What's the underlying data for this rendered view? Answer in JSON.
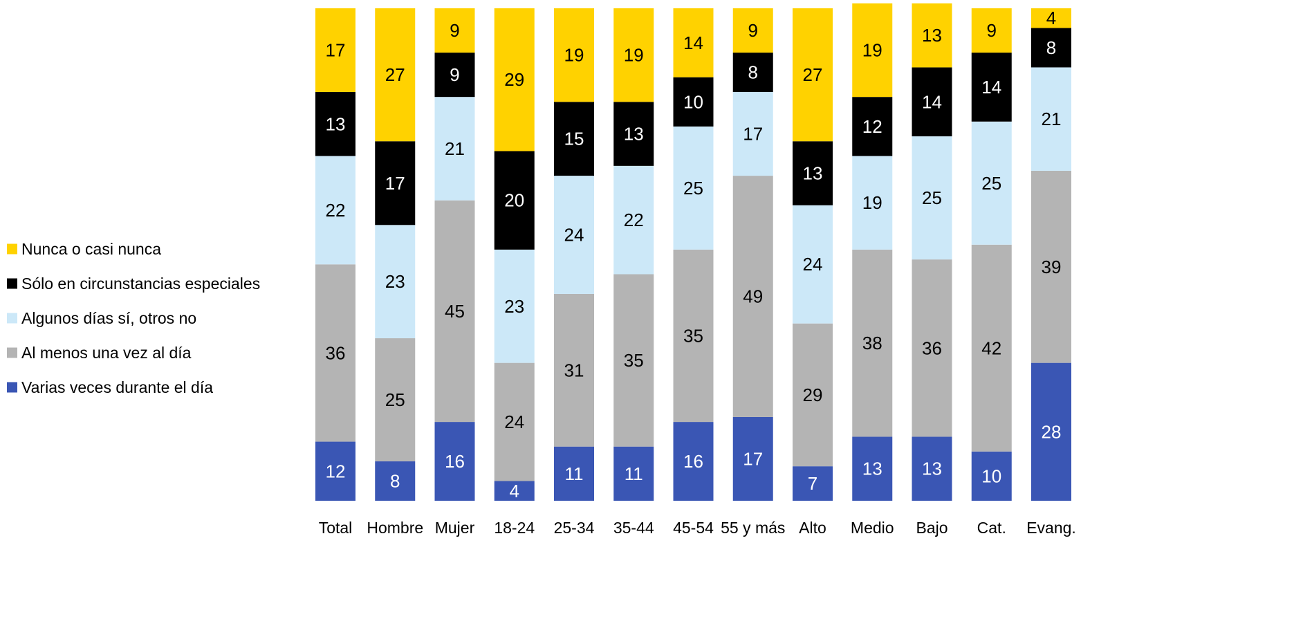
{
  "chart_data": {
    "type": "bar",
    "stacked": true,
    "stack_order_bottom_to_top": [
      "Varias veces durante el día",
      "Al menos una vez al día",
      "Algunos días sí, otros no",
      "Sólo en circunstancias especiales",
      "Nunca o casi nunca"
    ],
    "categories": [
      "Total",
      "Hombre",
      "Mujer",
      "18-24",
      "25-34",
      "35-44",
      "45-54",
      "55 y más",
      "Alto",
      "Medio",
      "Bajo",
      "Cat.",
      "Evang."
    ],
    "series": [
      {
        "name": "Varias veces durante el día",
        "color": "#3a56b4",
        "label_color": "#ffffff",
        "values": [
          12,
          8,
          16,
          4,
          11,
          11,
          16,
          17,
          7,
          13,
          13,
          10,
          28
        ]
      },
      {
        "name": "Al menos una vez al día",
        "color": "#b4b4b4",
        "label_color": "#000000",
        "values": [
          36,
          25,
          45,
          24,
          31,
          35,
          35,
          49,
          29,
          38,
          36,
          42,
          39
        ]
      },
      {
        "name": "Algunos días sí, otros no",
        "color": "#cce8f8",
        "label_color": "#000000",
        "values": [
          22,
          23,
          21,
          23,
          24,
          22,
          25,
          17,
          24,
          19,
          25,
          25,
          21
        ]
      },
      {
        "name": "Sólo en circunstancias especiales",
        "color": "#000000",
        "label_color": "#ffffff",
        "values": [
          13,
          17,
          9,
          20,
          15,
          13,
          10,
          8,
          13,
          12,
          14,
          14,
          8
        ]
      },
      {
        "name": "Nunca o casi nunca",
        "color": "#ffd200",
        "label_color": "#000000",
        "values": [
          17,
          27,
          9,
          29,
          19,
          19,
          14,
          9,
          27,
          19,
          13,
          9,
          4
        ]
      }
    ],
    "legend": {
      "placement": "left",
      "items": [
        {
          "label": "Nunca o casi nunca",
          "color": "#ffd200"
        },
        {
          "label": "Sólo en circunstancias especiales",
          "color": "#000000"
        },
        {
          "label": "Algunos días sí, otros no",
          "color": "#cce8f8"
        },
        {
          "label": "Al menos una vez al día",
          "color": "#b4b4b4"
        },
        {
          "label": "Varias veces durante el día",
          "color": "#3a56b4"
        }
      ]
    },
    "ylim": [
      0,
      100
    ],
    "grid": false
  }
}
